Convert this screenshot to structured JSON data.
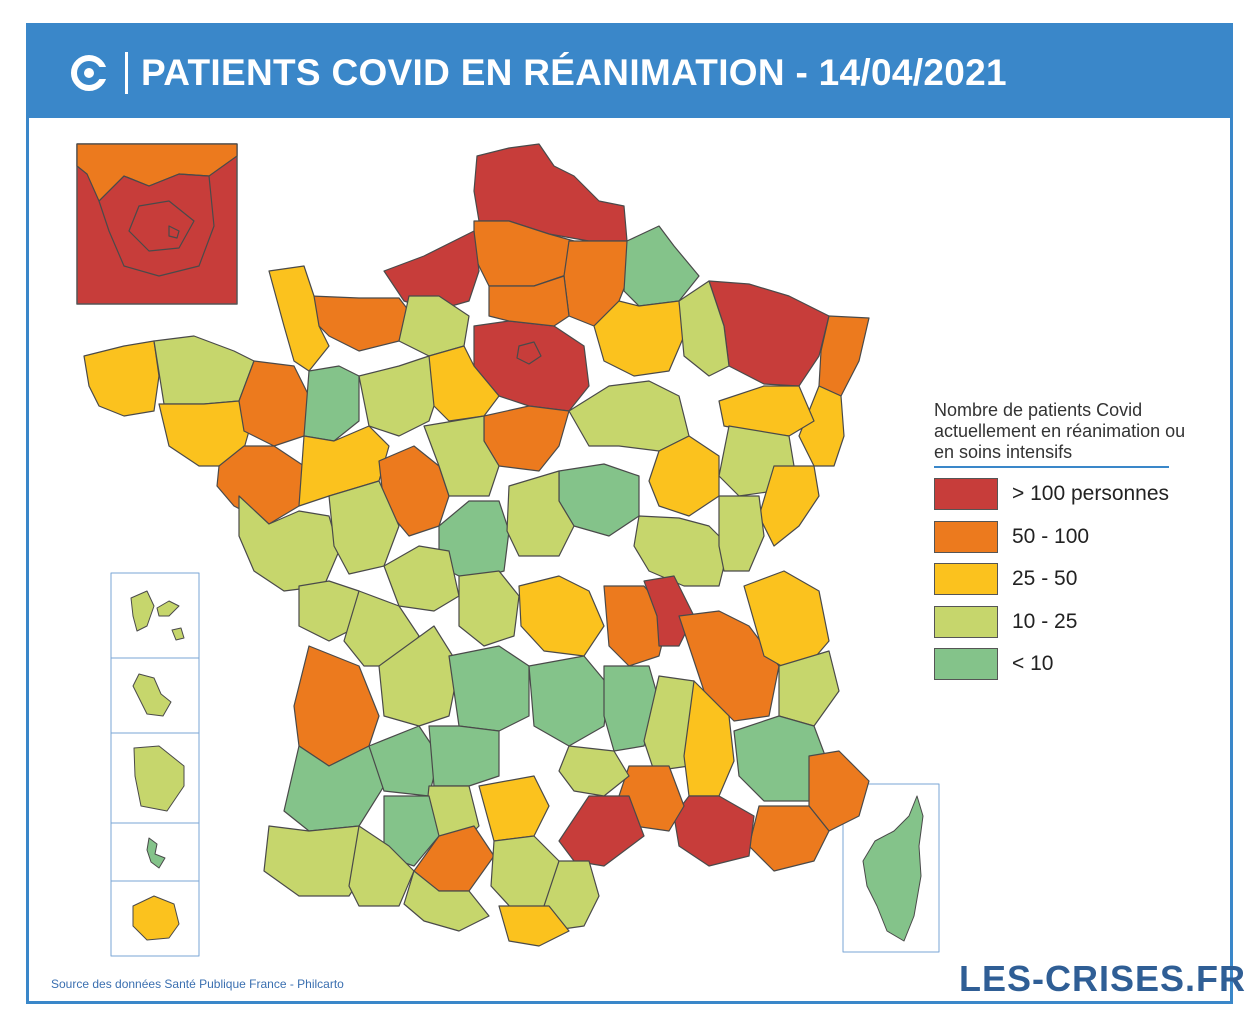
{
  "header": {
    "title": "PATIENTS COVID EN RÉANIMATION - 14/04/2021",
    "bar_color": "#3a87c9",
    "logo_icon": "les-crises-c-logo-icon"
  },
  "legend": {
    "title": "Nombre de patients Covid actuellement en réanimation ou en soins intensifs",
    "items": [
      {
        "label": "> 100 personnes",
        "color": "#c73d3a"
      },
      {
        "label": "50 - 100",
        "color": "#ec7a1e"
      },
      {
        "label": "25 - 50",
        "color": "#fbc21e"
      },
      {
        "label": "10 - 25",
        "color": "#c6d66c"
      },
      {
        "label": "< 10",
        "color": "#84c38a"
      }
    ]
  },
  "map": {
    "country": "France métropolitaine",
    "insets": [
      "Paris et petite couronne",
      "Guadeloupe",
      "Martinique",
      "Guyane",
      "Mayotte",
      "La Réunion",
      "Corse"
    ]
  },
  "footer": {
    "source": "Source des données Santé Publique France - Philcarto",
    "brand": "LES-CRISES.FR"
  }
}
